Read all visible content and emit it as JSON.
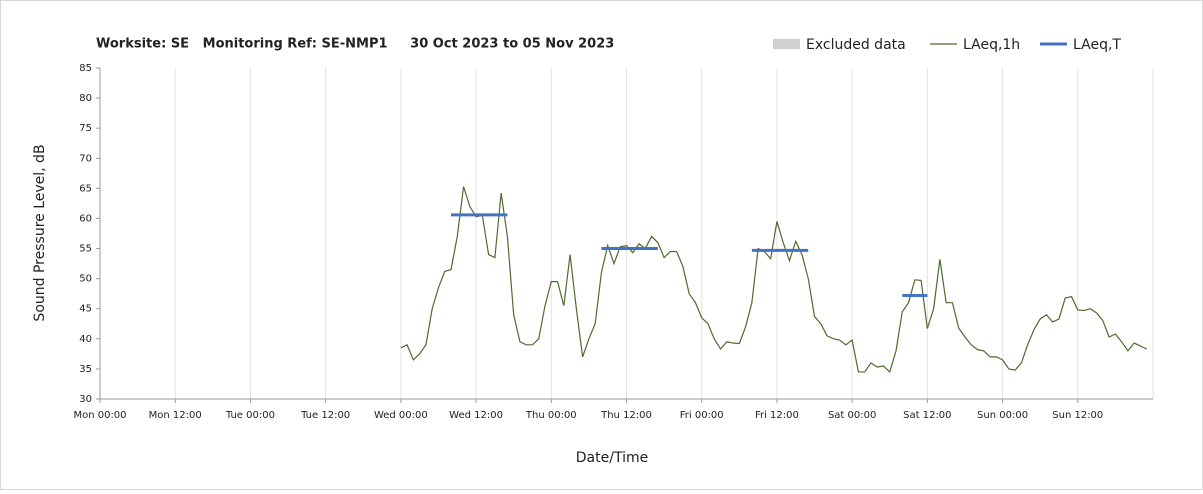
{
  "chart_data": {
    "type": "line",
    "title": "Worksite: SE   Monitoring Ref: SE-NMP1     30 Oct 2023 to 05 Nov 2023",
    "x_label": "Date/Time",
    "y_label": "Sound Pressure Level, dB",
    "xlim": [
      0,
      168
    ],
    "ylim": [
      30,
      85
    ],
    "yticks": [
      30,
      35,
      40,
      45,
      50,
      55,
      60,
      65,
      70,
      75,
      80,
      85
    ],
    "xticks": [
      {
        "value": 0,
        "label": "Mon 00:00"
      },
      {
        "value": 12,
        "label": "Mon 12:00"
      },
      {
        "value": 24,
        "label": "Tue 00:00"
      },
      {
        "value": 36,
        "label": "Tue 12:00"
      },
      {
        "value": 48,
        "label": "Wed 00:00"
      },
      {
        "value": 60,
        "label": "Wed 12:00"
      },
      {
        "value": 72,
        "label": "Thu 00:00"
      },
      {
        "value": 84,
        "label": "Thu 12:00"
      },
      {
        "value": 96,
        "label": "Fri 00:00"
      },
      {
        "value": 108,
        "label": "Fri 12:00"
      },
      {
        "value": 120,
        "label": "Sat 00:00"
      },
      {
        "value": 132,
        "label": "Sat 12:00"
      },
      {
        "value": 144,
        "label": "Sun 00:00"
      },
      {
        "value": 156,
        "label": "Sun 12:00"
      }
    ],
    "grid": true,
    "excluded": {
      "name": "Excluded data",
      "color": "#d0d0d0"
    },
    "series": [
      {
        "name": "LAeq,1h",
        "color": "#4f6b2f",
        "x": [
          48,
          49,
          50,
          51,
          52,
          53,
          54,
          55,
          56,
          57,
          58,
          59,
          60,
          61,
          62,
          63,
          64,
          65,
          66,
          67,
          68,
          69,
          70,
          71,
          72,
          73,
          74,
          75,
          76,
          77,
          78,
          79,
          80,
          81,
          82,
          83,
          84,
          85,
          86,
          87,
          88,
          89,
          90,
          91,
          92,
          93,
          94,
          95,
          96,
          97,
          98,
          99,
          100,
          101,
          102,
          103,
          104,
          105,
          106,
          107,
          108,
          109,
          110,
          111,
          112,
          113,
          114,
          115,
          116,
          117,
          118,
          119,
          120,
          121,
          122,
          123,
          124,
          125,
          126,
          127,
          128,
          129,
          130,
          131,
          132,
          133,
          134,
          135,
          136,
          137,
          138,
          139,
          140,
          141,
          142,
          143,
          144,
          145,
          146,
          147,
          148,
          149,
          150,
          151,
          152,
          153,
          154,
          155,
          156,
          157,
          158,
          159,
          160,
          161,
          162,
          163,
          164,
          165,
          166,
          167
        ],
        "values": [
          38.5,
          39,
          36.5,
          37.5,
          39,
          45,
          48.5,
          51.2,
          51.5,
          57,
          65.3,
          62,
          60.3,
          60.5,
          54,
          53.5,
          64.2,
          57,
          44,
          39.5,
          39,
          39,
          40,
          45.5,
          49.5,
          49.5,
          45.5,
          54,
          45,
          37,
          40,
          42.5,
          51,
          55.5,
          52.5,
          55.3,
          55.5,
          54.3,
          55.8,
          55,
          57,
          56,
          53.5,
          54.5,
          54.5,
          52,
          47.5,
          46,
          43.5,
          42.5,
          40,
          38.3,
          39.5,
          39.3,
          39.2,
          42,
          46,
          55,
          54.5,
          53.3,
          59.5,
          56,
          53,
          56.2,
          54,
          50,
          43.7,
          42.5,
          40.5,
          40,
          39.8,
          39,
          39.8,
          34.5,
          34.5,
          36,
          35.3,
          35.5,
          34.5,
          38,
          44.5,
          46,
          49.8,
          49.7,
          41.7,
          45,
          53.2,
          46,
          46,
          41.8,
          40.3,
          39,
          38.2,
          38,
          37,
          37,
          36.5,
          35,
          34.8,
          36,
          39,
          41.5,
          43.3,
          44,
          42.8,
          43.3,
          46.8,
          47,
          44.8,
          44.7,
          45,
          44.3,
          43,
          40.3,
          40.8,
          39.5,
          38,
          39.3,
          38.8,
          38.3
        ]
      },
      {
        "name": "LAeq,T",
        "color": "#4472c4",
        "segments": [
          {
            "start": 56,
            "end": 65,
            "value": 60.6
          },
          {
            "start": 80,
            "end": 89,
            "value": 55
          },
          {
            "start": 104,
            "end": 113,
            "value": 54.7
          },
          {
            "start": 128,
            "end": 132,
            "value": 47.2
          }
        ]
      }
    ]
  }
}
